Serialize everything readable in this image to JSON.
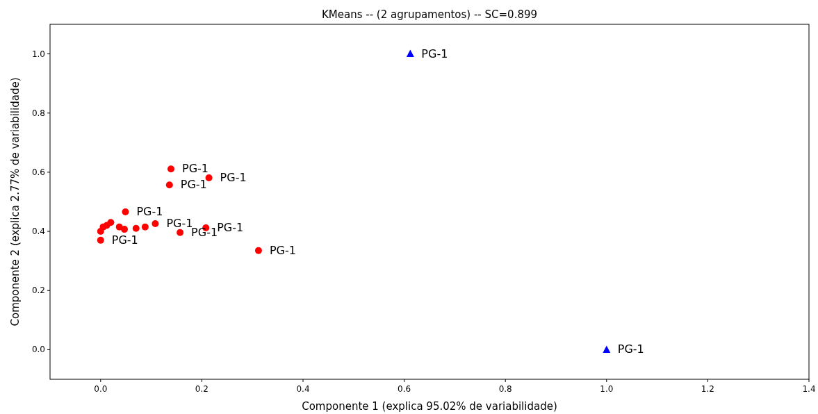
{
  "chart_data": {
    "type": "scatter",
    "title": "KMeans -- (2 agrupamentos) -- SC=0.899",
    "xlabel": "Componente 1 (explica 95.02% de variabilidade)",
    "ylabel": "Componente 2 (explica 2.77% de variabilidade)",
    "xlim": [
      -0.1,
      1.4
    ],
    "ylim": [
      -0.1,
      1.1
    ],
    "xticks": [
      {
        "value": 0,
        "label": "0.0"
      },
      {
        "value": 0.2,
        "label": "0.2"
      },
      {
        "value": 0.4,
        "label": "0.4"
      },
      {
        "value": 0.6,
        "label": "0.6"
      },
      {
        "value": 0.8,
        "label": "0.8"
      },
      {
        "value": 1,
        "label": "1.0"
      },
      {
        "value": 1.2,
        "label": "1.2"
      },
      {
        "value": 1.4,
        "label": "1.4"
      }
    ],
    "yticks": [
      {
        "value": 0,
        "label": "0.0"
      },
      {
        "value": 0.2,
        "label": "0.2"
      },
      {
        "value": 0.4,
        "label": "0.4"
      },
      {
        "value": 0.6,
        "label": "0.6"
      },
      {
        "value": 0.8,
        "label": "0.8"
      },
      {
        "value": 1,
        "label": "1.0"
      }
    ],
    "grid": false,
    "series": [
      {
        "color": "#ff0000",
        "marker": "circle",
        "x": [
          0.139,
          0.136,
          0.214,
          0.049,
          0.208,
          0.157,
          0.312,
          0,
          0,
          0.005,
          0.02,
          0.012,
          0.108,
          0.037,
          0.07,
          0.047,
          0.088
        ],
        "values": [
          0.611,
          0.557,
          0.581,
          0.466,
          0.412,
          0.396,
          0.335,
          0.37,
          0.4,
          0.415,
          0.43,
          0.42,
          0.426,
          0.415,
          0.41,
          0.407,
          0.415
        ]
      },
      {
        "color": "#0000ff",
        "marker": "triangle",
        "x": [
          0.612,
          1.0
        ],
        "values": [
          1.0,
          0.0
        ]
      }
    ],
    "annotations": [
      {
        "text": "PG-1",
        "x": 0.139,
        "y": 0.611
      },
      {
        "text": "PG-1",
        "x": 0.136,
        "y": 0.557
      },
      {
        "text": "PG-1",
        "x": 0.214,
        "y": 0.581
      },
      {
        "text": "PG-1",
        "x": 0.049,
        "y": 0.466
      },
      {
        "text": "PG-1",
        "x": 0.208,
        "y": 0.412
      },
      {
        "text": "PG-1",
        "x": 0.157,
        "y": 0.396
      },
      {
        "text": "PG-1",
        "x": 0.312,
        "y": 0.335
      },
      {
        "text": "PG-1",
        "x": 0,
        "y": 0.37
      },
      {
        "text": "PG-1",
        "x": 0.108,
        "y": 0.426
      },
      {
        "text": "PG-1",
        "x": 0.612,
        "y": 1.0
      },
      {
        "text": "PG-1",
        "x": 1.0,
        "y": 0.0
      }
    ]
  }
}
